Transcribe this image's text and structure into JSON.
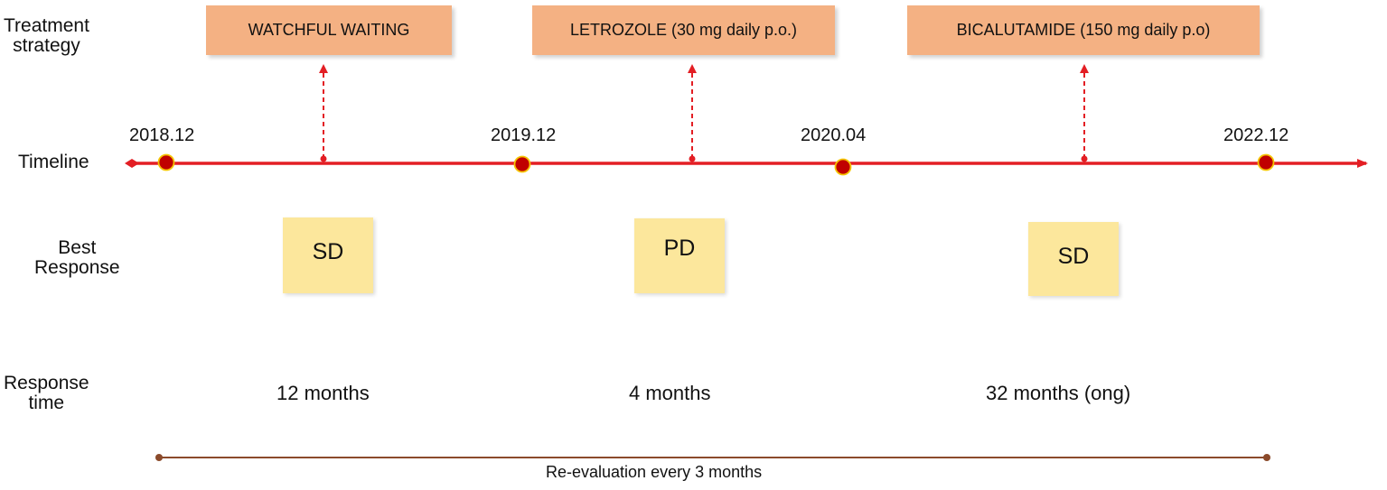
{
  "row_labels": {
    "strategy": [
      "Treatment",
      "strategy"
    ],
    "timeline": "Timeline",
    "response": [
      "Best",
      "Response"
    ],
    "response_time": [
      "Response",
      "time"
    ]
  },
  "strategies": [
    {
      "label": "WATCHFUL WAITING"
    },
    {
      "label": "LETROZOLE (30 mg daily p.o.)"
    },
    {
      "label": "BICALUTAMIDE  (150 mg daily p.o)"
    }
  ],
  "timepoints": [
    "2018.12",
    "2019.12",
    "2020.04",
    "2022.12"
  ],
  "best_responses": [
    "SD",
    "PD",
    "SD"
  ],
  "response_times": [
    "12 months",
    "4 months",
    "32 months (ong)"
  ],
  "reevaluation": "Re-evaluation every 3 months",
  "colors": {
    "timeline": "#e31e24",
    "dot_fill": "#c00000",
    "dot_stroke": "#f5c400",
    "strategy_box": "#f4b183",
    "response_box": "#fce79c",
    "reevaluation_line": "#8b4a2b"
  }
}
